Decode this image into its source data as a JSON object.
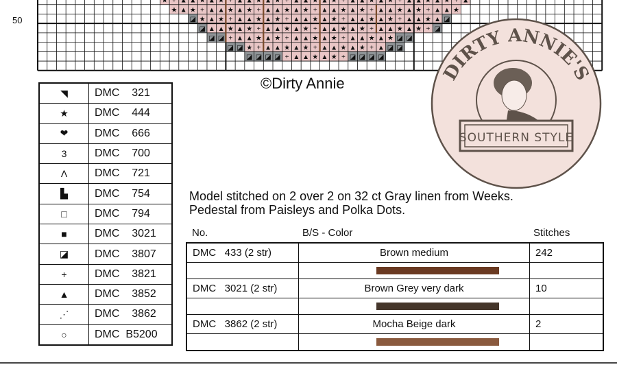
{
  "chart": {
    "row_label": "50"
  },
  "key": [
    {
      "symbol": "◥",
      "icon": "corner-triangle-icon",
      "code": "DMC    321"
    },
    {
      "symbol": "★",
      "icon": "star-icon",
      "code": "DMC    444"
    },
    {
      "symbol": "❤",
      "icon": "heart-icon",
      "code": "DMC    666"
    },
    {
      "symbol": "3",
      "icon": "three-icon",
      "code": "DMC    700"
    },
    {
      "symbol": "Λ",
      "icon": "caret-icon",
      "code": "DMC    721"
    },
    {
      "symbol": "▙",
      "icon": "step-icon",
      "code": "DMC    754"
    },
    {
      "symbol": "□",
      "icon": "hollow-square-icon",
      "code": "DMC    794"
    },
    {
      "symbol": "■",
      "icon": "filled-square-icon",
      "code": "DMC    3021"
    },
    {
      "symbol": "◪",
      "icon": "half-square-icon",
      "code": "DMC    3807"
    },
    {
      "symbol": "+",
      "icon": "plus-icon",
      "code": "DMC    3821"
    },
    {
      "symbol": "▲",
      "icon": "triangle-icon",
      "code": "DMC    3852"
    },
    {
      "symbol": "⋰",
      "icon": "dotted-diagonal-icon",
      "code": "DMC    3862"
    },
    {
      "symbol": "○",
      "icon": "circle-icon",
      "code": "DMC  B5200"
    }
  ],
  "copyright": "©Dirty Annie",
  "logo": {
    "top": "DIRTY ANNIE'S",
    "bottom": "SOUTHERN STYLE"
  },
  "model_note": [
    "Model stitched on 2 over 2 on 32 ct Gray linen from Weeks.",
    "Pedestal from Paisleys and Polka Dots."
  ],
  "backstitch": {
    "headers": {
      "no": "No.",
      "color": "B/S - Color",
      "stitches": "Stitches"
    },
    "rows": [
      {
        "no": "DMC   433 (2 str)",
        "color": "Brown medium",
        "stitches": "242",
        "swatch": "#6a3a22"
      },
      {
        "no": "DMC   3021 (2 str)",
        "color": "Brown Grey very dark",
        "stitches": "10",
        "swatch": "#45362b"
      },
      {
        "no": "DMC   3862 (2 str)",
        "color": "Mocha Beige dark",
        "stitches": "2",
        "swatch": "#8a5a3e"
      }
    ]
  },
  "colors": {
    "pink_fill": "#e9c6c6",
    "gray_fill": "#8e9396",
    "backstitch": "#7a4a2a",
    "logo_bg": "#f3e1dc",
    "logo_ink": "#5e524a"
  }
}
